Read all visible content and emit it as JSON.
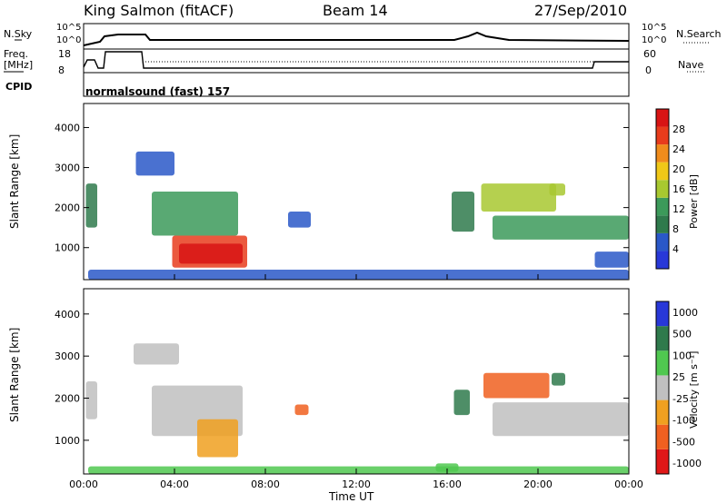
{
  "header": {
    "station": "King Salmon (fitACF)",
    "beam": "Beam 14",
    "date": "27/Sep/2010"
  },
  "summary": {
    "left_labels": {
      "nsky": "N.Sky",
      "freq": "Freq.",
      "freq_unit": "[MHz]",
      "cpid": "CPID"
    },
    "right_labels": {
      "nsearch": "N.Search",
      "nave": "Nave"
    },
    "noise_ticks": {
      "top": "10^5",
      "bottom": "10^0"
    },
    "freq_ticks": [
      "18",
      "8"
    ],
    "nave_ticks": [
      "60",
      "0"
    ],
    "program": "normalsound (fast) 157"
  },
  "colors": {
    "power": [
      "#2838d8",
      "#2a58c8",
      "#2f7a4c",
      "#3c9a5a",
      "#a8c830",
      "#f0c818",
      "#f08c1c",
      "#e83c1c",
      "#d81414"
    ],
    "velocity": [
      "#2838d8",
      "#2f7a4c",
      "#50c850",
      "#c0c0c0",
      "#f0a020",
      "#f06020",
      "#e01818"
    ]
  },
  "chart_data": [
    {
      "type": "heatmap",
      "name": "power",
      "ylabel": "Slant Range [km]",
      "yticks": [
        1000,
        2000,
        3000,
        4000
      ],
      "ylim": [
        200,
        4600
      ],
      "xlim": [
        0,
        24
      ],
      "colorbar": {
        "label": "Power [dB]",
        "ticks": [
          "4",
          "8",
          "12",
          "16",
          "20",
          "24",
          "28"
        ]
      },
      "regions": [
        {
          "t": [
            3.9,
            7.2
          ],
          "r": [
            500,
            1300
          ],
          "level": 7
        },
        {
          "t": [
            4.2,
            7.0
          ],
          "r": [
            600,
            1100
          ],
          "level": 8
        },
        {
          "t": [
            3.0,
            6.8
          ],
          "r": [
            1300,
            2400
          ],
          "level": 3
        },
        {
          "t": [
            2.3,
            4.0
          ],
          "r": [
            2800,
            3400
          ],
          "level": 1
        },
        {
          "t": [
            0.1,
            0.6
          ],
          "r": [
            1500,
            2600
          ],
          "level": 2
        },
        {
          "t": [
            9.0,
            10.0
          ],
          "r": [
            1500,
            1900
          ],
          "level": 1
        },
        {
          "t": [
            16.2,
            17.2
          ],
          "r": [
            1400,
            2400
          ],
          "level": 2
        },
        {
          "t": [
            17.5,
            20.8
          ],
          "r": [
            1900,
            2600
          ],
          "level": 4
        },
        {
          "t": [
            18.0,
            24.0
          ],
          "r": [
            1200,
            1800
          ],
          "level": 3
        },
        {
          "t": [
            20.5,
            21.2
          ],
          "r": [
            2300,
            2600
          ],
          "level": 4
        },
        {
          "t": [
            22.5,
            24.0
          ],
          "r": [
            500,
            900
          ],
          "level": 1
        },
        {
          "t": [
            0.2,
            24.0
          ],
          "r": [
            200,
            450
          ],
          "level": 1
        }
      ]
    },
    {
      "type": "heatmap",
      "name": "velocity",
      "ylabel": "Slant Range [km]",
      "yticks": [
        1000,
        2000,
        3000,
        4000
      ],
      "ylim": [
        200,
        4600
      ],
      "xlim": [
        0,
        24
      ],
      "xlabel": "Time UT",
      "xticks": [
        "00:00",
        "04:00",
        "08:00",
        "12:00",
        "16:00",
        "20:00",
        "00:00"
      ],
      "colorbar": {
        "label": "Velocity [m s⁻¹]",
        "ticks": [
          "1000",
          "500",
          "100",
          "25",
          "-25",
          "-100",
          "-500",
          "-1000"
        ]
      },
      "regions": [
        {
          "t": [
            3.0,
            7.0
          ],
          "r": [
            1100,
            2300
          ],
          "level": 3
        },
        {
          "t": [
            5.0,
            6.8
          ],
          "r": [
            600,
            1500
          ],
          "level": 4
        },
        {
          "t": [
            2.2,
            4.2
          ],
          "r": [
            2800,
            3300
          ],
          "level": 3
        },
        {
          "t": [
            0.1,
            0.6
          ],
          "r": [
            1500,
            2400
          ],
          "level": 3
        },
        {
          "t": [
            9.3,
            9.9
          ],
          "r": [
            1600,
            1850
          ],
          "level": 5
        },
        {
          "t": [
            18.0,
            24.0
          ],
          "r": [
            1100,
            1900
          ],
          "level": 3
        },
        {
          "t": [
            17.6,
            20.5
          ],
          "r": [
            2000,
            2600
          ],
          "level": 5
        },
        {
          "t": [
            16.3,
            17.0
          ],
          "r": [
            1600,
            2200
          ],
          "level": 1
        },
        {
          "t": [
            20.6,
            21.2
          ],
          "r": [
            2300,
            2600
          ],
          "level": 1
        },
        {
          "t": [
            15.5,
            16.5
          ],
          "r": [
            250,
            450
          ],
          "level": 2
        },
        {
          "t": [
            0.2,
            24.0
          ],
          "r": [
            200,
            380
          ],
          "level": 2
        }
      ]
    }
  ]
}
